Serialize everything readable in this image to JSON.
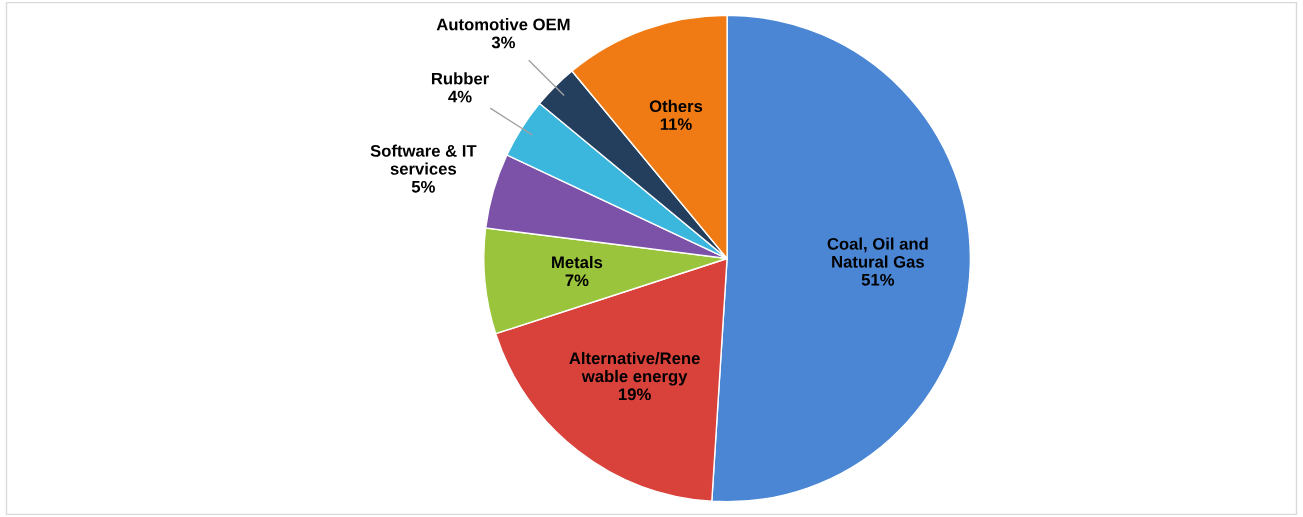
{
  "chart_data": {
    "type": "pie",
    "categories": [
      "Coal, Oil and Natural Gas",
      "Alternative/Rene wable energy",
      "Metals",
      "Software & IT services",
      "Rubber",
      "Automotive OEM",
      "Others"
    ],
    "values": [
      51,
      19,
      7,
      5,
      4,
      3,
      11
    ],
    "colors": [
      "#4a86d4",
      "#d9423b",
      "#9ac43c",
      "#7b52a8",
      "#3bb6dc",
      "#243f5e",
      "#f07b14"
    ],
    "value_labels": [
      "51%",
      "19%",
      "7%",
      "5%",
      "4%",
      "3%",
      "11%"
    ],
    "legend": false
  }
}
